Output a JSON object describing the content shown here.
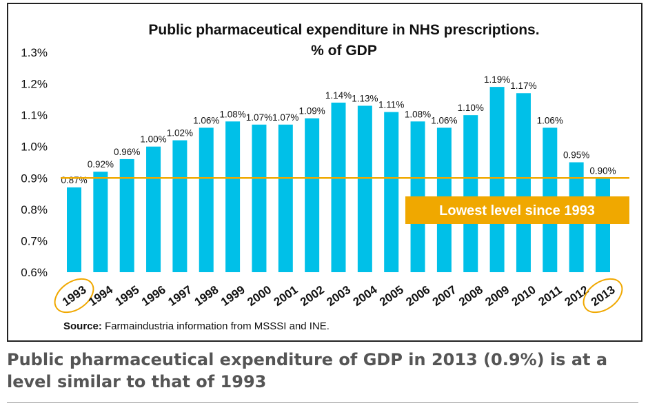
{
  "chart_data": {
    "type": "bar",
    "title": "Public pharmaceutical expenditure in NHS prescriptions.",
    "subtitle": "% of GDP",
    "categories": [
      "1993",
      "1994",
      "1995",
      "1996",
      "1997",
      "1998",
      "1999",
      "2000",
      "2001",
      "2002",
      "2003",
      "2004",
      "2005",
      "2006",
      "2007",
      "2008",
      "2009",
      "2010",
      "2011",
      "2012",
      "2013"
    ],
    "values": [
      0.87,
      0.92,
      0.96,
      1.0,
      1.02,
      1.06,
      1.08,
      1.07,
      1.07,
      1.09,
      1.14,
      1.13,
      1.11,
      1.08,
      1.06,
      1.1,
      1.19,
      1.17,
      1.06,
      0.95,
      0.9
    ],
    "value_labels": [
      "0.87%",
      "0.92%",
      "0.96%",
      "1.00%",
      "1.02%",
      "1.06%",
      "1.08%",
      "1.07%",
      "1.07%",
      "1.09%",
      "1.14%",
      "1.13%",
      "1.11%",
      "1.08%",
      "1.06%",
      "1.10%",
      "1.19%",
      "1.17%",
      "1.06%",
      "0.95%",
      "0.90%"
    ],
    "ylim": [
      0.6,
      1.3
    ],
    "yticks": [
      0.6,
      0.7,
      0.8,
      0.9,
      1.0,
      1.1,
      1.2,
      1.3
    ],
    "ytick_labels": [
      "0.6%",
      "0.7%",
      "0.8%",
      "0.9%",
      "1.0%",
      "1.1%",
      "1.2%",
      "1.3%"
    ],
    "xlabel": "",
    "ylabel": "",
    "reference_line": {
      "value": 0.9
    },
    "callout": "Lowest level since 1993",
    "highlighted_categories": [
      "1993",
      "2013"
    ],
    "source_label": "Source:",
    "source_text": " Farmaindustria information from MSSSI and INE.",
    "colors": {
      "bar": "#00c0e8",
      "accent": "#f0a800",
      "text": "#111111"
    }
  },
  "caption": "Public pharmaceutical expenditure of GDP in 2013 (0.9%) is at a level similar to that of 1993"
}
